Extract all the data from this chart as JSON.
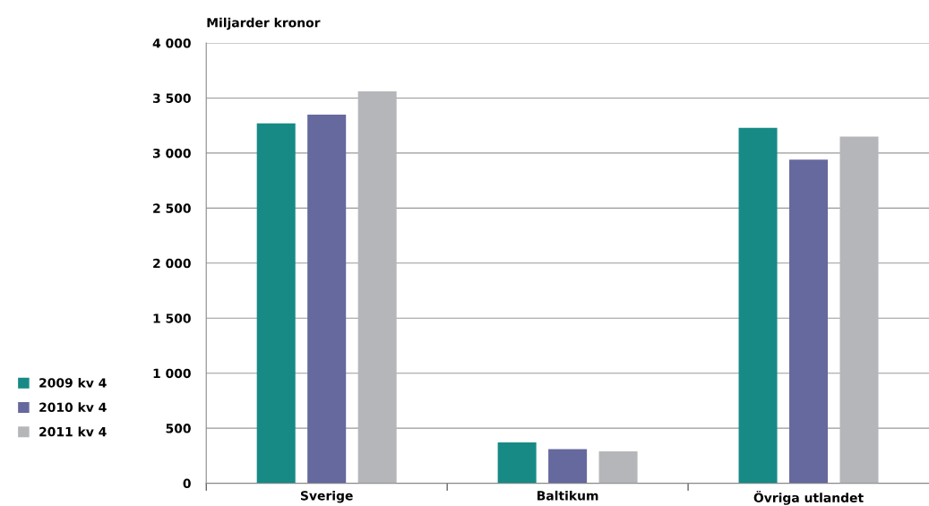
{
  "chart_data": {
    "type": "bar",
    "ylabel": "Miljarder kronor",
    "categories": [
      "Sverige",
      "Baltikum",
      "Övriga utlandet"
    ],
    "series": [
      {
        "name": "2009 kv 4",
        "color": "#178a86",
        "values": [
          3270,
          370,
          3230
        ]
      },
      {
        "name": "2010 kv 4",
        "color": "#66699e",
        "values": [
          3350,
          310,
          2940
        ]
      },
      {
        "name": "2011 kv 4",
        "color": "#b5b6ba",
        "values": [
          3560,
          290,
          3150
        ]
      }
    ],
    "ylim": [
      0,
      4000
    ],
    "yticks": [
      0,
      {
        "value": 500,
        "label": "500"
      },
      {
        "value": 1000,
        "label": "1 000"
      },
      {
        "value": 1500,
        "label": "1 500"
      },
      {
        "value": 2000,
        "label": "2 000"
      },
      {
        "value": 2500,
        "label": "2 500"
      },
      {
        "value": 3000,
        "label": "3 000"
      },
      {
        "value": 3500,
        "label": "3 500"
      },
      {
        "value": 4000,
        "label": "4 000"
      }
    ],
    "grid": "y",
    "legend": "left"
  }
}
